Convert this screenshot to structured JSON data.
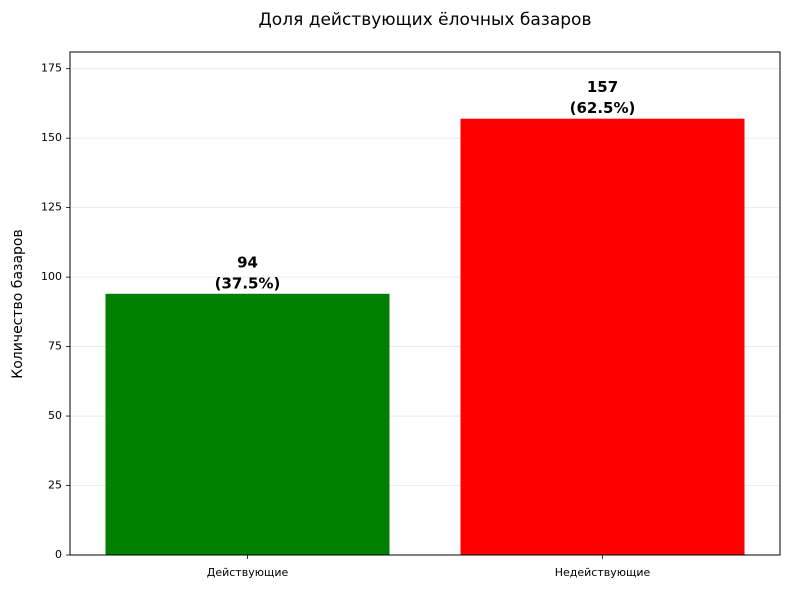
{
  "chart_data": {
    "type": "bar",
    "title": "Доля действующих ёлочных базаров",
    "ylabel": "Количество базаров",
    "categories": [
      "Действующие",
      "Недействующие"
    ],
    "values": [
      94,
      157
    ],
    "value_labels": [
      [
        "94",
        "(37.5%)"
      ],
      [
        "157",
        "(62.5%)"
      ]
    ],
    "colors": [
      "#008000",
      "#ff0000"
    ],
    "ylim": [
      0,
      181
    ],
    "yticks": [
      0,
      25,
      50,
      75,
      100,
      125,
      150,
      175
    ],
    "grid": true
  }
}
